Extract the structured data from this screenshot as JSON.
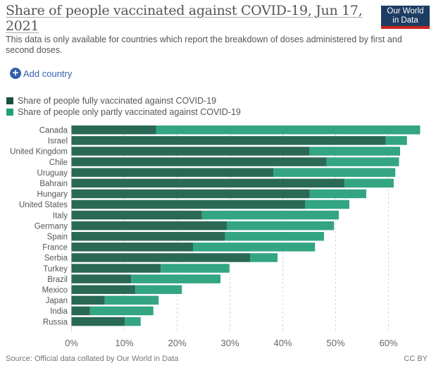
{
  "header": {
    "title": "Share of people vaccinated against COVID-19, Jun 17, 2021",
    "subtitle": "This data is only available for countries which report the breakdown of doses administered by first and second doses.",
    "logo_line1": "Our World",
    "logo_line2": "in Data"
  },
  "controls": {
    "add_country_icon": "plus-circle-icon",
    "add_country_label": "Add country"
  },
  "footer": {
    "source": "Source: Official data collated by Our World in Data",
    "license": "CC BY"
  },
  "colors": {
    "fully": "#2a6955",
    "partly": "#33a582",
    "legend_fully": "#1b5140",
    "legend_partly": "#22a173",
    "accent": "#3360a9"
  },
  "chart_data": {
    "type": "bar",
    "orientation": "horizontal",
    "stacked": true,
    "title": "Share of people vaccinated against COVID-19, Jun 17, 2021",
    "legend_position": "top-left",
    "xlim": [
      0,
      66
    ],
    "x_ticks": [
      "0%",
      "10%",
      "20%",
      "30%",
      "40%",
      "50%",
      "60%"
    ],
    "x_tick_values": [
      0,
      10,
      20,
      30,
      40,
      50,
      60
    ],
    "grid": true,
    "categories": [
      "Canada",
      "Israel",
      "United Kingdom",
      "Chile",
      "Uruguay",
      "Bahrain",
      "Hungary",
      "United States",
      "Italy",
      "Germany",
      "Spain",
      "France",
      "Serbia",
      "Turkey",
      "Brazil",
      "Mexico",
      "Japan",
      "India",
      "Russia"
    ],
    "series": [
      {
        "name": "Share of people fully vaccinated against COVID-19",
        "values": [
          16.0,
          59.5,
          45.1,
          48.3,
          38.2,
          51.7,
          45.1,
          44.2,
          24.7,
          29.4,
          29.1,
          23.0,
          33.8,
          16.9,
          11.3,
          12.1,
          6.3,
          3.5,
          10.1
        ]
      },
      {
        "name": "Share of people only partly vaccinated against COVID-19",
        "values": [
          50.0,
          4.0,
          17.1,
          13.7,
          23.1,
          9.3,
          10.7,
          8.4,
          25.9,
          20.3,
          18.7,
          23.1,
          5.2,
          13.0,
          16.9,
          8.8,
          10.2,
          12.0,
          3.0
        ]
      }
    ]
  }
}
